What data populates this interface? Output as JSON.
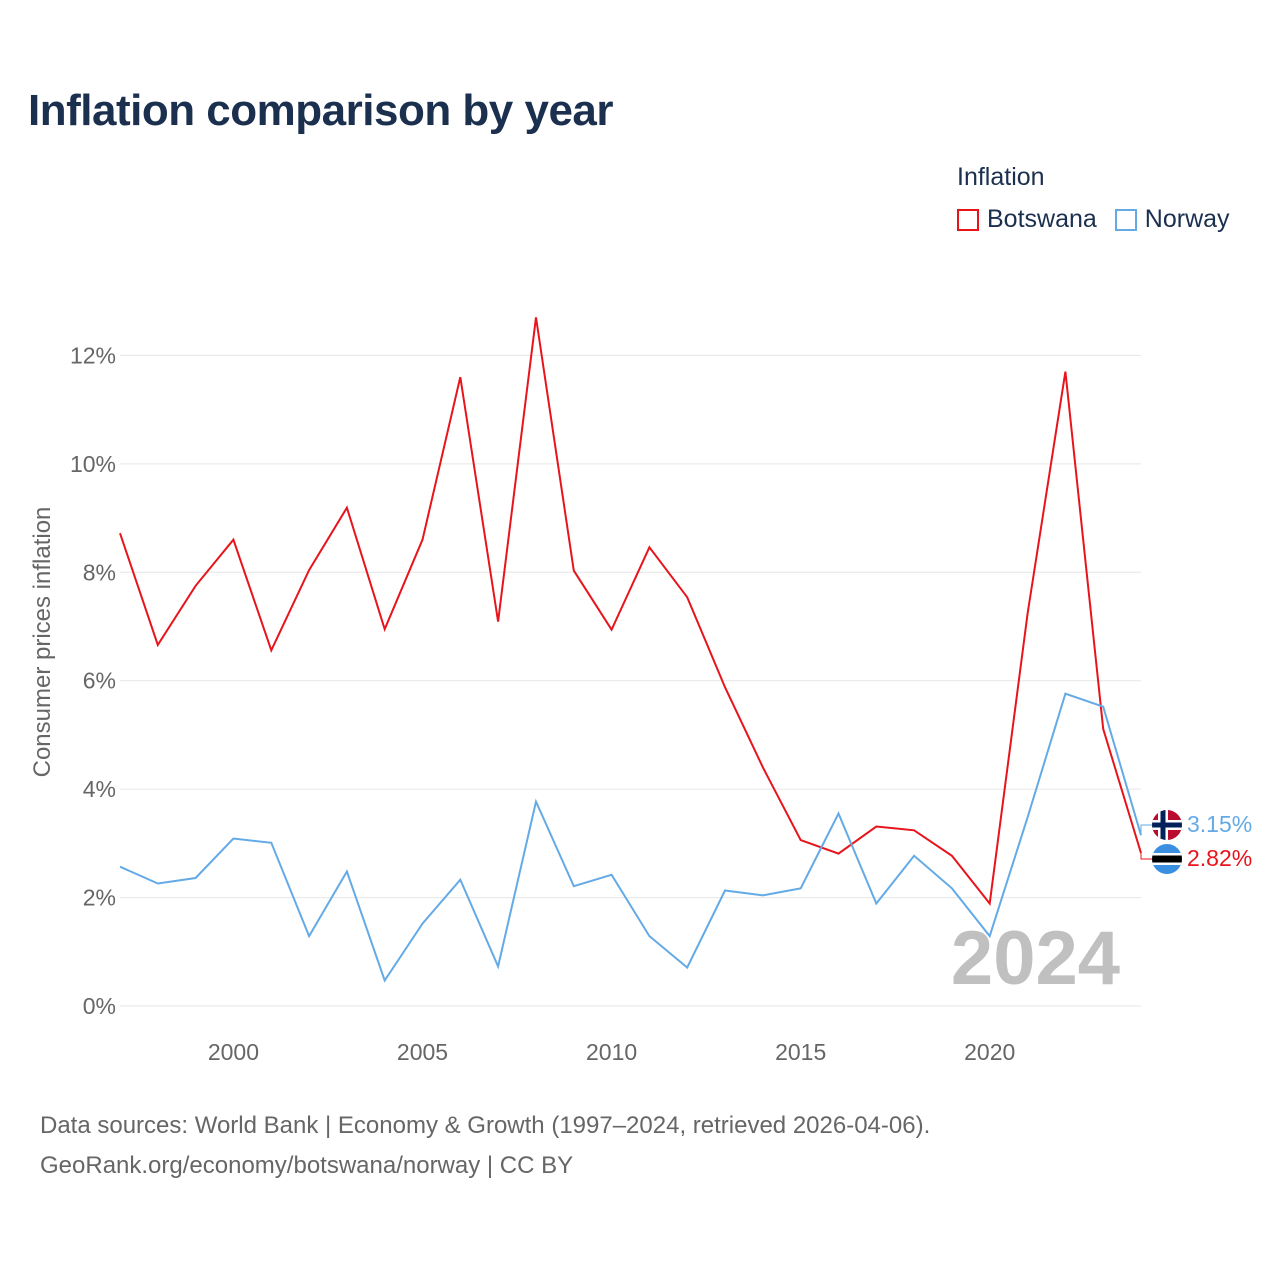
{
  "title": "Inflation comparison by year",
  "legend": {
    "title": "Inflation",
    "items": [
      {
        "name": "Botswana",
        "color": "#e8141c"
      },
      {
        "name": "Norway",
        "color": "#64aae6"
      }
    ]
  },
  "source": {
    "line1": "Data sources: World Bank | Economy & Growth (1997–2024, retrieved 2026-04-06).",
    "line2": "GeoRank.org/economy/botswana/norway | CC BY"
  },
  "chart_data": {
    "type": "line",
    "title": "Inflation comparison by year",
    "xlabel": "",
    "ylabel": "Consumer prices inflation",
    "x": [
      1997,
      1998,
      1999,
      2000,
      2001,
      2002,
      2003,
      2004,
      2005,
      2006,
      2007,
      2008,
      2009,
      2010,
      2011,
      2012,
      2013,
      2014,
      2015,
      2016,
      2017,
      2018,
      2019,
      2020,
      2021,
      2022,
      2023,
      2024
    ],
    "xlim": [
      1997,
      2024
    ],
    "ylim": [
      0,
      12.8
    ],
    "x_ticks": [
      2000,
      2005,
      2010,
      2015,
      2020
    ],
    "y_ticks": [
      0,
      2,
      4,
      6,
      8,
      10,
      12
    ],
    "y_tick_labels": [
      "0%",
      "2%",
      "4%",
      "6%",
      "8%",
      "10%",
      "12%"
    ],
    "grid": true,
    "legend_position": "top-right",
    "watermark_year": "2024",
    "series": [
      {
        "name": "Botswana",
        "color": "#e8141c",
        "values": [
          8.72,
          6.66,
          7.75,
          8.6,
          6.56,
          8.04,
          9.19,
          6.95,
          8.6,
          11.6,
          7.09,
          12.7,
          8.03,
          6.94,
          8.46,
          7.54,
          5.88,
          4.4,
          3.06,
          2.81,
          3.31,
          3.24,
          2.77,
          1.89,
          7.24,
          11.7,
          5.11,
          2.82
        ],
        "end_label": "2.82%"
      },
      {
        "name": "Norway",
        "color": "#64aae6",
        "values": [
          2.57,
          2.26,
          2.36,
          3.09,
          3.01,
          1.29,
          2.48,
          0.47,
          1.52,
          2.33,
          0.73,
          3.77,
          2.21,
          2.42,
          1.29,
          0.71,
          2.13,
          2.04,
          2.17,
          3.55,
          1.89,
          2.77,
          2.17,
          1.29,
          3.48,
          5.76,
          5.52,
          3.15
        ],
        "end_label": "3.15%"
      }
    ]
  }
}
